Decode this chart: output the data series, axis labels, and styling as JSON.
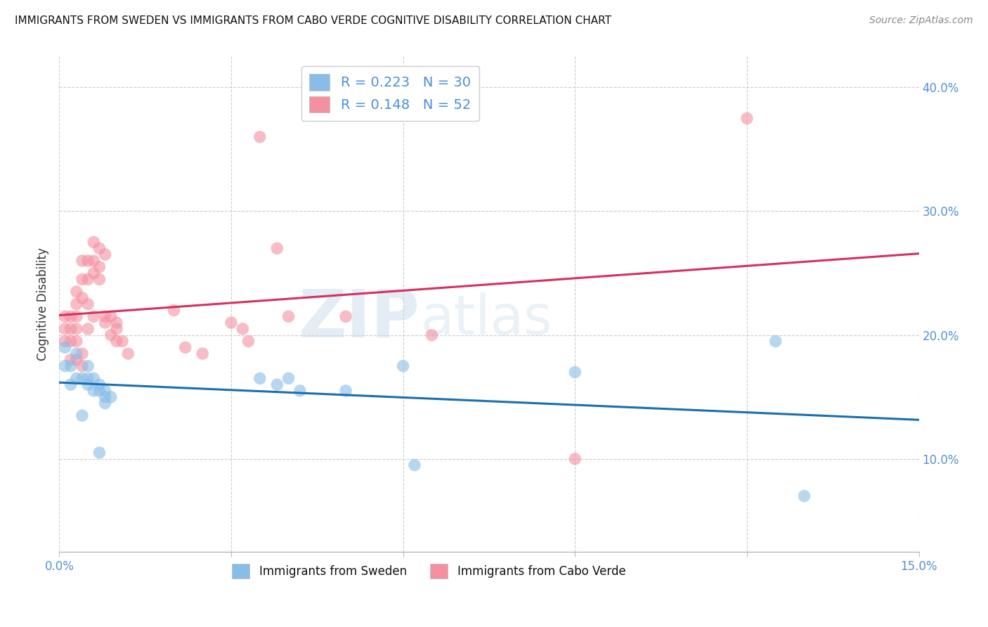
{
  "title": "IMMIGRANTS FROM SWEDEN VS IMMIGRANTS FROM CABO VERDE COGNITIVE DISABILITY CORRELATION CHART",
  "source": "Source: ZipAtlas.com",
  "ylabel": "Cognitive Disability",
  "x_min": 0.0,
  "x_max": 0.15,
  "y_min": 0.025,
  "y_max": 0.425,
  "x_ticks": [
    0.0,
    0.03,
    0.06,
    0.09,
    0.12,
    0.15
  ],
  "y_ticks": [
    0.1,
    0.2,
    0.3,
    0.4
  ],
  "sweden_R": 0.223,
  "sweden_N": 30,
  "caboverde_R": 0.148,
  "caboverde_N": 52,
  "sweden_color": "#88bde8",
  "caboverde_color": "#f490a0",
  "sweden_line_color": "#1a6faf",
  "caboverde_line_color": "#d63060",
  "watermark_zip": "ZIP",
  "watermark_atlas": "atlas",
  "sweden_x": [
    0.001,
    0.001,
    0.002,
    0.002,
    0.003,
    0.003,
    0.004,
    0.004,
    0.005,
    0.005,
    0.005,
    0.006,
    0.006,
    0.007,
    0.007,
    0.007,
    0.008,
    0.008,
    0.008,
    0.009,
    0.035,
    0.038,
    0.04,
    0.042,
    0.05,
    0.06,
    0.062,
    0.09,
    0.125,
    0.13
  ],
  "sweden_y": [
    0.19,
    0.175,
    0.175,
    0.16,
    0.185,
    0.165,
    0.165,
    0.135,
    0.175,
    0.165,
    0.16,
    0.165,
    0.155,
    0.16,
    0.155,
    0.105,
    0.155,
    0.15,
    0.145,
    0.15,
    0.165,
    0.16,
    0.165,
    0.155,
    0.155,
    0.175,
    0.095,
    0.17,
    0.195,
    0.07
  ],
  "caboverde_x": [
    0.001,
    0.001,
    0.001,
    0.002,
    0.002,
    0.002,
    0.002,
    0.003,
    0.003,
    0.003,
    0.003,
    0.003,
    0.003,
    0.004,
    0.004,
    0.004,
    0.004,
    0.004,
    0.005,
    0.005,
    0.005,
    0.005,
    0.006,
    0.006,
    0.006,
    0.006,
    0.007,
    0.007,
    0.007,
    0.008,
    0.008,
    0.008,
    0.009,
    0.009,
    0.01,
    0.01,
    0.01,
    0.011,
    0.012,
    0.02,
    0.022,
    0.025,
    0.03,
    0.032,
    0.033,
    0.035,
    0.038,
    0.04,
    0.05,
    0.065,
    0.09,
    0.12
  ],
  "caboverde_y": [
    0.215,
    0.205,
    0.195,
    0.215,
    0.205,
    0.195,
    0.18,
    0.235,
    0.225,
    0.215,
    0.205,
    0.195,
    0.18,
    0.26,
    0.245,
    0.23,
    0.185,
    0.175,
    0.26,
    0.245,
    0.225,
    0.205,
    0.275,
    0.26,
    0.25,
    0.215,
    0.27,
    0.255,
    0.245,
    0.265,
    0.215,
    0.21,
    0.215,
    0.2,
    0.21,
    0.205,
    0.195,
    0.195,
    0.185,
    0.22,
    0.19,
    0.185,
    0.21,
    0.205,
    0.195,
    0.36,
    0.27,
    0.215,
    0.215,
    0.2,
    0.1,
    0.375
  ]
}
